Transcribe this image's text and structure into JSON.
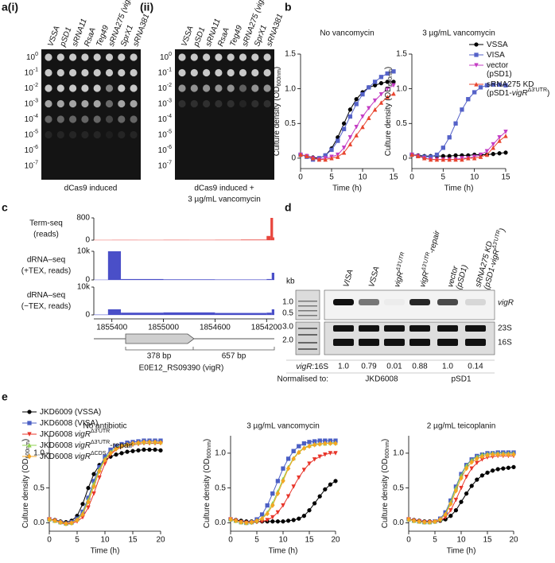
{
  "panel_labels": {
    "a": "a(i)",
    "a2": "(ii)",
    "b": "b",
    "c": "c",
    "d": "d",
    "e": "e"
  },
  "panel_a": {
    "lanes": [
      "VSSA",
      "pSD1",
      "sRNA11",
      "RsaA",
      "Teg49",
      "sRNA275 (vigRΔ3'UTR)",
      "SprX1",
      "sRNA381"
    ],
    "dilutions": [
      {
        "base": "10",
        "exp": "0"
      },
      {
        "base": "10",
        "exp": "-1"
      },
      {
        "base": "10",
        "exp": "-2"
      },
      {
        "base": "10",
        "exp": "-3"
      },
      {
        "base": "10",
        "exp": "-4"
      },
      {
        "base": "10",
        "exp": "-5"
      },
      {
        "base": "10",
        "exp": "-6"
      },
      {
        "base": "10",
        "exp": "-7"
      }
    ],
    "captions": [
      [
        "dCas9 induced"
      ],
      [
        "dCas9 induced +",
        "3 µg/mL vancomycin"
      ]
    ]
  },
  "panel_c": {
    "xlim": [
      1855540,
      1854140
    ],
    "xticks": [
      1855400,
      1855000,
      1854600,
      1854200
    ],
    "tracks": [
      {
        "label": [
          "Term-seq",
          "(reads)"
        ],
        "color": "#e8453c",
        "ylim": [
          0,
          800
        ],
        "yticks": [
          0,
          800
        ],
        "bins": [
          1855540,
          1855400,
          1855200,
          1855000,
          1854800,
          1854600,
          1854400,
          1854200,
          1854170,
          1854150,
          1854140
        ],
        "values": [
          5,
          8,
          6,
          10,
          8,
          12,
          20,
          150,
          800,
          100
        ]
      },
      {
        "label": [
          "dRNA–seq",
          "(+TEX, reads)"
        ],
        "color": "#4a4fc8",
        "ylim": [
          0,
          10000
        ],
        "yticks": [
          0,
          {
            "value": 10000,
            "label": "10k"
          }
        ],
        "bins": [
          1855540,
          1855430,
          1855330,
          1855000,
          1854600,
          1854200,
          1854160,
          1854140
        ],
        "values": [
          50,
          10000,
          300,
          200,
          150,
          300,
          2500
        ]
      },
      {
        "label": [
          "dRNA–seq",
          "(−TEX, reads)"
        ],
        "color": "#4a4fc8",
        "ylim": [
          0,
          10000
        ],
        "yticks": [
          0,
          {
            "value": 10000,
            "label": "10k"
          }
        ],
        "bins": [
          1855540,
          1855430,
          1855330,
          1855000,
          1854600,
          1854200,
          1854160,
          1854140
        ],
        "values": [
          100,
          2000,
          800,
          900,
          700,
          800,
          2000
        ]
      }
    ],
    "gene": {
      "segments": [
        "378 bp",
        "657 bp"
      ],
      "name": "E0E12_RS09390 (vigR)"
    }
  },
  "panel_d": {
    "lanes": [
      "VISA",
      "VSSA",
      "vigRΔ3'UTR",
      "vigRΔ3'UTR-repair",
      "vector (pSD1)",
      "sRNA275 KD (pSD1-vigRΔ3'UTR)"
    ],
    "kb_label": "kb",
    "kb_top": [
      "1.0",
      "0.5"
    ],
    "kb_bottom": [
      "3.0",
      "2.0"
    ],
    "bands": [
      "vigR",
      "23S",
      "16S"
    ],
    "ratio_label": "vigR:16S",
    "ratios": [
      "1.0",
      "0.79",
      "0.01",
      "0.88",
      "1.0",
      "0.14"
    ],
    "normalised_label": "Normalised to:",
    "references": [
      "JKD6008",
      "pSD1"
    ]
  },
  "chart_data": [
    {
      "type": "line",
      "title": "No vancomycin",
      "x_label": "Time (h)",
      "y_label": [
        "Culture density (OD",
        "600nm",
        ")"
      ],
      "x": [
        0,
        1,
        2,
        3,
        4,
        5,
        6,
        7,
        8,
        9,
        10,
        11,
        12,
        13,
        14,
        15
      ],
      "xlim": [
        0,
        15
      ],
      "xticks": [
        0,
        5,
        10,
        15
      ],
      "ylim": [
        -0.15,
        1.5
      ],
      "yticks": [
        0,
        0.5,
        {
          "value": 1,
          "label": "1.0"
        },
        1.5
      ],
      "series": [
        {
          "color": "#000000",
          "values": [
            0.05,
            0.03,
            0.01,
            0,
            0.04,
            0.14,
            0.3,
            0.5,
            0.7,
            0.85,
            0.95,
            1.02,
            1.05,
            1.08,
            1.1,
            1.1
          ]
        },
        {
          "color": "#5562c8",
          "values": [
            0.05,
            0.02,
            -0.02,
            0,
            0.04,
            0.12,
            0.25,
            0.42,
            0.6,
            0.78,
            0.92,
            1.02,
            1.1,
            1.17,
            1.22,
            1.25
          ]
        },
        {
          "color": "#c43dc4",
          "values": [
            0.05,
            0.03,
            0,
            -0.02,
            0,
            0.02,
            0.05,
            0.15,
            0.3,
            0.45,
            0.6,
            0.72,
            0.83,
            0.92,
            1.0,
            1.05
          ]
        },
        {
          "color": "#e8452f",
          "values": [
            0.05,
            0.03,
            0,
            -0.02,
            -0.02,
            0,
            0.02,
            0.08,
            0.2,
            0.33,
            0.45,
            0.58,
            0.7,
            0.8,
            0.88,
            0.93
          ]
        }
      ]
    },
    {
      "type": "line",
      "title": "3 µg/mL vancomycin",
      "x_label": "Time (h)",
      "y_label": [
        "Culture density (OD",
        "600nm",
        ")"
      ],
      "x": [
        0,
        1,
        2,
        3,
        4,
        5,
        6,
        7,
        8,
        9,
        10,
        11,
        12,
        13,
        14,
        15
      ],
      "xlim": [
        0,
        15
      ],
      "xticks": [
        0,
        5,
        10,
        15
      ],
      "ylim": [
        -0.15,
        1.5
      ],
      "yticks": [
        0,
        0.5,
        {
          "value": 1,
          "label": "1.0"
        },
        1.5
      ],
      "legend": "upper right",
      "series": [
        {
          "name": "VSSA",
          "color": "#000000",
          "values": [
            0.05,
            0.04,
            0.03,
            0.03,
            0.03,
            0.03,
            0.03,
            0.04,
            0.04,
            0.04,
            0.05,
            0.05,
            0.05,
            0.06,
            0.07,
            0.08
          ]
        },
        {
          "name": "VISA",
          "color": "#5562c8",
          "values": [
            0.05,
            0.03,
            0.02,
            0.02,
            0.05,
            0.15,
            0.3,
            0.5,
            0.7,
            0.85,
            0.95,
            1.02,
            1.05,
            1.06,
            1.06,
            1.05
          ]
        },
        {
          "name": "vector (pSD1)",
          "color": "#c43dc4",
          "values": [
            0.05,
            0.03,
            0,
            -0.02,
            -0.02,
            -0.02,
            -0.02,
            -0.02,
            0,
            0,
            0.02,
            0.05,
            0.1,
            0.2,
            0.3,
            0.38
          ]
        },
        {
          "name": "sRNA275 KD (pSD1-vigRΔ3'UTR)",
          "color": "#e8452f",
          "values": [
            0.05,
            0.03,
            0,
            -0.02,
            -0.02,
            -0.02,
            -0.02,
            -0.02,
            -0.02,
            0,
            0,
            0.02,
            0.05,
            0.15,
            0.25,
            0.32
          ]
        }
      ]
    },
    {
      "type": "line",
      "title": "No antibiotic",
      "x_label": "Time (h)",
      "y_label": [
        "Culture density (OD",
        "600nm",
        ")"
      ],
      "x": [
        0,
        1,
        2,
        3,
        4,
        5,
        6,
        7,
        8,
        9,
        10,
        11,
        12,
        13,
        14,
        15,
        16,
        17,
        18,
        19,
        20
      ],
      "xlim": [
        0,
        20
      ],
      "xticks": [
        0,
        5,
        10,
        15,
        20
      ],
      "ylim": [
        -0.12,
        1.25
      ],
      "yticks": [
        {
          "value": 0,
          "label": "0.0"
        },
        0.5,
        {
          "value": 1,
          "label": "1.0"
        }
      ],
      "legend": "upper left",
      "series": [
        {
          "name": "JKD6009 (VSSA)",
          "color": "#000000",
          "values": [
            0.05,
            0.04,
            0.02,
            0.01,
            0.03,
            0.1,
            0.27,
            0.5,
            0.7,
            0.83,
            0.9,
            0.95,
            0.98,
            1.0,
            1.02,
            1.03,
            1.04,
            1.05,
            1.05,
            1.05,
            1.04
          ]
        },
        {
          "name": "JKD6008 (VISA)",
          "color": "#4b5fc4",
          "values": [
            0.05,
            0.03,
            0.01,
            -0.01,
            0.01,
            0.06,
            0.16,
            0.36,
            0.6,
            0.8,
            0.95,
            1.05,
            1.1,
            1.13,
            1.15,
            1.16,
            1.17,
            1.18,
            1.18,
            1.18,
            1.18
          ]
        },
        {
          "name": "JKD6008 vigRΔ3'UTR",
          "color": "#e8352a",
          "values": [
            0.05,
            0.03,
            0,
            -0.02,
            -0.01,
            0.02,
            0.08,
            0.22,
            0.42,
            0.65,
            0.85,
            0.98,
            1.05,
            1.09,
            1.11,
            1.12,
            1.13,
            1.14,
            1.14,
            1.14,
            1.14
          ]
        },
        {
          "name": "JKD6008 vigRΔ3'UTR-repair",
          "color": "#8fd14f",
          "values": [
            0.05,
            0.03,
            0.01,
            -0.01,
            0,
            0.05,
            0.14,
            0.33,
            0.56,
            0.77,
            0.92,
            1.02,
            1.08,
            1.11,
            1.13,
            1.14,
            1.15,
            1.16,
            1.16,
            1.16,
            1.16
          ]
        },
        {
          "name": "JKD6008 vigRΔCDS",
          "color": "#f5a623",
          "values": [
            0.05,
            0.03,
            0.01,
            -0.01,
            0,
            0.04,
            0.12,
            0.3,
            0.52,
            0.74,
            0.9,
            1.0,
            1.06,
            1.1,
            1.12,
            1.14,
            1.15,
            1.16,
            1.16,
            1.16,
            1.15
          ]
        }
      ]
    },
    {
      "type": "line",
      "title": "3 µg/mL vancomycin",
      "x_label": "Time (h)",
      "y_label": [
        "Culture density (OD",
        "600nm",
        ")"
      ],
      "x": [
        0,
        1,
        2,
        3,
        4,
        5,
        6,
        7,
        8,
        9,
        10,
        11,
        12,
        13,
        14,
        15,
        16,
        17,
        18,
        19,
        20
      ],
      "xlim": [
        0,
        20
      ],
      "xticks": [
        0,
        5,
        10,
        15,
        20
      ],
      "ylim": [
        -0.12,
        1.25
      ],
      "yticks": [
        {
          "value": 0,
          "label": "0.0"
        },
        0.5,
        {
          "value": 1,
          "label": "1.0"
        }
      ],
      "series": [
        {
          "color": "#000000",
          "values": [
            0.05,
            0.04,
            0.03,
            0.02,
            0.02,
            0.02,
            0.02,
            0.02,
            0.02,
            0.02,
            0.02,
            0.03,
            0.04,
            0.06,
            0.1,
            0.18,
            0.28,
            0.38,
            0.48,
            0.55,
            0.6
          ]
        },
        {
          "color": "#4b5fc4",
          "values": [
            0.05,
            0.03,
            0.01,
            0,
            0.01,
            0.05,
            0.12,
            0.25,
            0.42,
            0.6,
            0.78,
            0.92,
            1.03,
            1.1,
            1.14,
            1.16,
            1.17,
            1.18,
            1.18,
            1.18,
            1.18
          ]
        },
        {
          "color": "#e8352a",
          "values": [
            0.05,
            0.03,
            0.01,
            0,
            0,
            0.01,
            0.02,
            0.04,
            0.08,
            0.15,
            0.25,
            0.38,
            0.52,
            0.65,
            0.76,
            0.85,
            0.91,
            0.95,
            0.98,
            1.0,
            1.0
          ]
        },
        {
          "color": "#8fd14f",
          "values": [
            0.05,
            0.03,
            0.01,
            0,
            0.01,
            0.03,
            0.07,
            0.15,
            0.28,
            0.45,
            0.63,
            0.8,
            0.93,
            1.02,
            1.08,
            1.11,
            1.13,
            1.14,
            1.14,
            1.15,
            1.15
          ]
        },
        {
          "color": "#f5a623",
          "values": [
            0.05,
            0.03,
            0.01,
            0,
            0.01,
            0.03,
            0.06,
            0.13,
            0.25,
            0.42,
            0.6,
            0.78,
            0.92,
            1.01,
            1.07,
            1.1,
            1.12,
            1.13,
            1.14,
            1.14,
            1.14
          ]
        }
      ]
    },
    {
      "type": "line",
      "title": "2 µg/mL teicoplanin",
      "x_label": "Time (h)",
      "y_label": [
        "Culture density (OD",
        "600nm",
        ")"
      ],
      "x": [
        0,
        1,
        2,
        3,
        4,
        5,
        6,
        7,
        8,
        9,
        10,
        11,
        12,
        13,
        14,
        15,
        16,
        17,
        18,
        19,
        20
      ],
      "xlim": [
        0,
        20
      ],
      "xticks": [
        0,
        5,
        10,
        15,
        20
      ],
      "ylim": [
        -0.12,
        1.25
      ],
      "yticks": [
        {
          "value": 0,
          "label": "0.0"
        },
        0.5,
        {
          "value": 1,
          "label": "1.0"
        }
      ],
      "series": [
        {
          "color": "#000000",
          "values": [
            0.05,
            0.04,
            0.03,
            0.02,
            0.02,
            0.02,
            0.03,
            0.05,
            0.1,
            0.18,
            0.3,
            0.42,
            0.53,
            0.62,
            0.68,
            0.72,
            0.75,
            0.77,
            0.78,
            0.79,
            0.8
          ]
        },
        {
          "color": "#4b5fc4",
          "values": [
            0.05,
            0.03,
            0.02,
            0.01,
            0.01,
            0.02,
            0.06,
            0.15,
            0.32,
            0.52,
            0.7,
            0.83,
            0.91,
            0.96,
            0.98,
            1.0,
            1.0,
            1.01,
            1.01,
            1.01,
            1.01
          ]
        },
        {
          "color": "#e8352a",
          "values": [
            0.05,
            0.03,
            0.02,
            0.01,
            0.01,
            0.01,
            0.03,
            0.08,
            0.18,
            0.33,
            0.5,
            0.66,
            0.78,
            0.86,
            0.91,
            0.94,
            0.95,
            0.96,
            0.96,
            0.96,
            0.96
          ]
        },
        {
          "color": "#8fd14f",
          "values": [
            0.05,
            0.03,
            0.02,
            0.01,
            0.01,
            0.02,
            0.05,
            0.13,
            0.3,
            0.5,
            0.68,
            0.82,
            0.9,
            0.95,
            0.98,
            0.99,
            1.0,
            1.0,
            1.0,
            1.0,
            1.0
          ]
        },
        {
          "color": "#f5a623",
          "values": [
            0.05,
            0.03,
            0.02,
            0.01,
            0.01,
            0.02,
            0.05,
            0.12,
            0.27,
            0.46,
            0.64,
            0.78,
            0.87,
            0.92,
            0.95,
            0.97,
            0.98,
            0.98,
            0.98,
            0.98,
            0.98
          ]
        }
      ]
    }
  ]
}
